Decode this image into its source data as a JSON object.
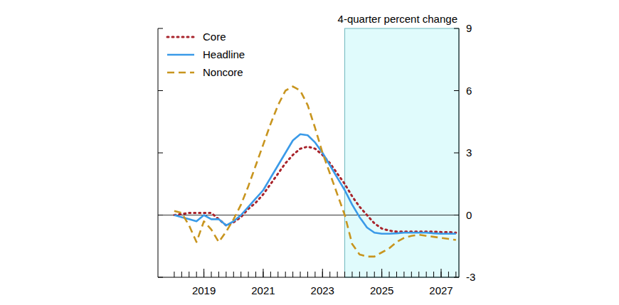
{
  "chart_data": {
    "type": "line",
    "y_label": "4-quarter percent change",
    "x": [
      2018,
      2018.25,
      2018.5,
      2018.75,
      2019,
      2019.25,
      2019.5,
      2019.75,
      2020,
      2020.25,
      2020.5,
      2020.75,
      2021,
      2021.25,
      2021.5,
      2021.75,
      2022,
      2022.25,
      2022.5,
      2022.75,
      2023,
      2023.25,
      2023.5,
      2023.75,
      2024,
      2024.25,
      2024.5,
      2024.75,
      2025,
      2025.25,
      2025.5,
      2025.75,
      2026,
      2026.25,
      2026.5,
      2026.75,
      2027,
      2027.25,
      2027.5
    ],
    "series": [
      {
        "name": "Core",
        "color": "#a8232b",
        "line_style": "dotted",
        "values": [
          0,
          0.05,
          0.1,
          0.1,
          0.1,
          0.1,
          -0.2,
          -0.5,
          -0.35,
          -0.1,
          0.3,
          0.6,
          1.0,
          1.5,
          2.0,
          2.5,
          2.9,
          3.2,
          3.3,
          3.2,
          2.9,
          2.5,
          2.0,
          1.5,
          0.9,
          0.4,
          0.0,
          -0.4,
          -0.65,
          -0.75,
          -0.8,
          -0.8,
          -0.8,
          -0.8,
          -0.8,
          -0.8,
          -0.82,
          -0.82,
          -0.85
        ]
      },
      {
        "name": "Headline",
        "color": "#3a9ae8",
        "line_style": "solid",
        "values": [
          0,
          -0.1,
          -0.2,
          -0.3,
          0.0,
          -0.2,
          -0.2,
          -0.5,
          -0.3,
          0.0,
          0.4,
          0.8,
          1.2,
          1.8,
          2.4,
          3.0,
          3.6,
          3.9,
          3.85,
          3.5,
          3.0,
          2.4,
          1.8,
          1.2,
          0.5,
          -0.1,
          -0.6,
          -0.85,
          -0.9,
          -0.9,
          -0.88,
          -0.85,
          -0.85,
          -0.85,
          -0.85,
          -0.88,
          -0.9,
          -0.9,
          -0.9
        ]
      },
      {
        "name": "Noncore",
        "color": "#c8951f",
        "line_style": "dashed",
        "values": [
          0.2,
          0.1,
          -0.5,
          -1.3,
          -0.3,
          -0.7,
          -1.3,
          -0.8,
          -0.2,
          0.5,
          1.4,
          2.4,
          3.4,
          4.4,
          5.3,
          6.0,
          6.2,
          6.0,
          5.3,
          4.2,
          3.0,
          2.0,
          1.0,
          0.0,
          -1.4,
          -1.9,
          -2.0,
          -2.0,
          -1.8,
          -1.6,
          -1.3,
          -1.1,
          -1.0,
          -0.95,
          -1.0,
          -1.05,
          -1.1,
          -1.15,
          -1.2
        ]
      }
    ],
    "xlim": [
      2017.45,
      2027.6
    ],
    "xticks": [
      2019,
      2021,
      2023,
      2025,
      2027
    ],
    "ylim": [
      -3,
      9
    ],
    "yticks": [
      -3,
      0,
      3,
      6,
      9
    ],
    "forecast_start": 2023.75,
    "legend": "upper left"
  }
}
